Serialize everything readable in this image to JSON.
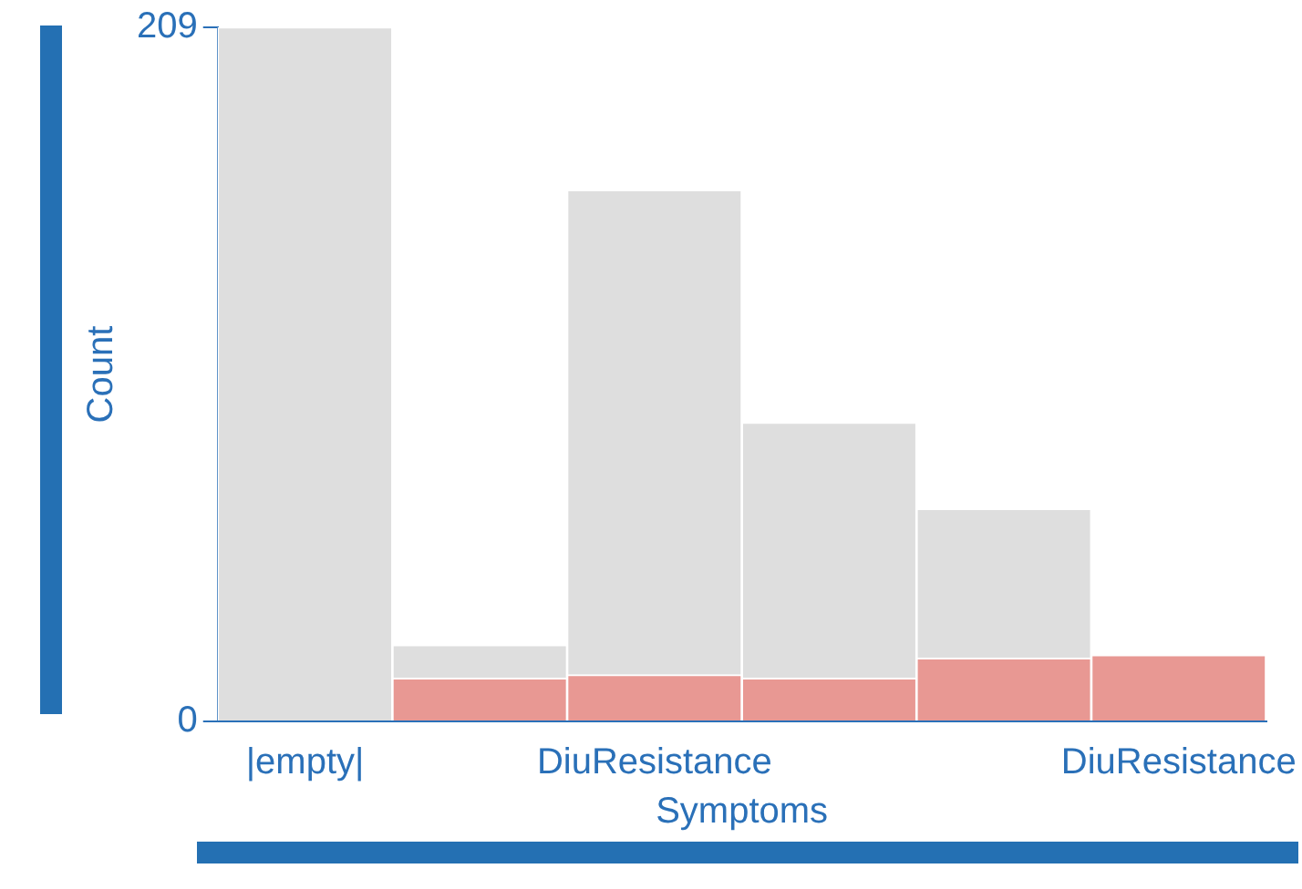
{
  "chart_data": {
    "type": "bar",
    "xlabel": "Symptoms",
    "ylabel": "Count",
    "categories": [
      "|empty|",
      null,
      "DiuResistance",
      null,
      null,
      "DiuResistance"
    ],
    "stacked": true,
    "series": [
      {
        "color": "#e89893",
        "values": [
          0,
          13,
          14,
          13,
          19,
          20
        ]
      },
      {
        "color": "#dedede",
        "values": [
          209,
          10,
          146,
          77,
          45,
          0
        ]
      }
    ],
    "ylim": [
      0,
      209
    ],
    "yticks": [
      0,
      209
    ],
    "grid": false,
    "legend": false
  }
}
